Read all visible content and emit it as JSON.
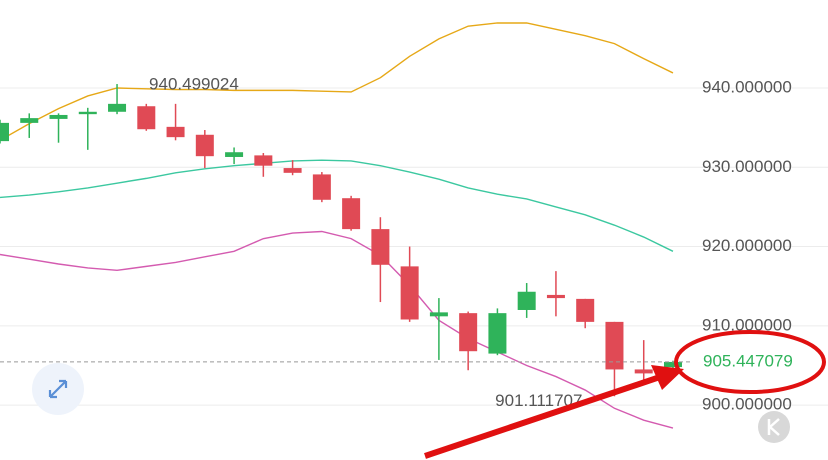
{
  "chart_data": {
    "type": "candlestick",
    "open": [
      933.3,
      935.6,
      936.1,
      936.7,
      937.0,
      937.7,
      935.1,
      934.1,
      931.3,
      931.5,
      929.9,
      929.1,
      926.1,
      922.2,
      917.5,
      911.2,
      911.6,
      906.5,
      912.0,
      913.9,
      913.4,
      910.5,
      904.5,
      904.8
    ],
    "high": [
      936.0,
      936.8,
      936.8,
      937.5,
      940.499024,
      938.0,
      938.0,
      934.7,
      932.5,
      931.8,
      930.9,
      929.4,
      926.4,
      923.7,
      920.0,
      913.5,
      911.8,
      912.2,
      915.4,
      916.9,
      913.4,
      910.5,
      908.2,
      905.6
    ],
    "low": [
      933.0,
      933.7,
      933.1,
      932.2,
      936.7,
      934.6,
      933.4,
      929.9,
      930.4,
      928.8,
      929.0,
      925.6,
      922.0,
      913.0,
      910.5,
      905.7,
      904.4,
      906.3,
      911.0,
      911.2,
      909.7,
      901.111707,
      902.9,
      904.6
    ],
    "close": [
      935.6,
      936.2,
      936.6,
      937.0,
      938.0,
      934.8,
      933.8,
      931.4,
      931.9,
      930.2,
      929.3,
      925.9,
      922.2,
      917.7,
      910.8,
      911.7,
      906.8,
      911.6,
      914.3,
      913.5,
      910.5,
      904.5,
      904.0,
      905.447079
    ],
    "up_color": "#2fb35a",
    "down_color": "#e04a55",
    "bands": [
      {
        "color": "#e6a817",
        "values": [
          933.4,
          935.5,
          937.4,
          939.0,
          940.0,
          939.9,
          939.8,
          939.8,
          939.7,
          939.7,
          939.7,
          939.6,
          939.5,
          941.3,
          944.0,
          946.2,
          947.8,
          948.2,
          948.2,
          947.4,
          946.6,
          945.6,
          943.7,
          941.9
        ]
      },
      {
        "color": "#3cc8a0",
        "values": [
          926.2,
          926.5,
          926.9,
          927.4,
          928.0,
          928.6,
          929.3,
          929.8,
          930.2,
          930.5,
          930.8,
          930.9,
          930.8,
          930.2,
          929.4,
          928.5,
          927.4,
          926.6,
          926.0,
          925.0,
          924.0,
          922.7,
          921.2,
          919.4
        ]
      },
      {
        "color": "#d45bb0",
        "values": [
          919.0,
          918.4,
          917.8,
          917.3,
          917.0,
          917.5,
          918.0,
          918.7,
          919.4,
          921.0,
          921.7,
          921.9,
          921.0,
          918.9,
          915.1,
          910.7,
          908.4,
          906.7,
          905.0,
          903.6,
          901.9,
          899.6,
          898.1,
          897.1
        ]
      }
    ],
    "ylim": [
      895.6,
      951.1
    ],
    "yticks": [
      {
        "value": 900,
        "label": "900.000000"
      },
      {
        "value": 910,
        "label": "910.000000"
      },
      {
        "value": 920,
        "label": "920.000000"
      },
      {
        "value": 930,
        "label": "930.000000"
      },
      {
        "value": 940,
        "label": "940.000000"
      }
    ],
    "grid": true
  }
}
